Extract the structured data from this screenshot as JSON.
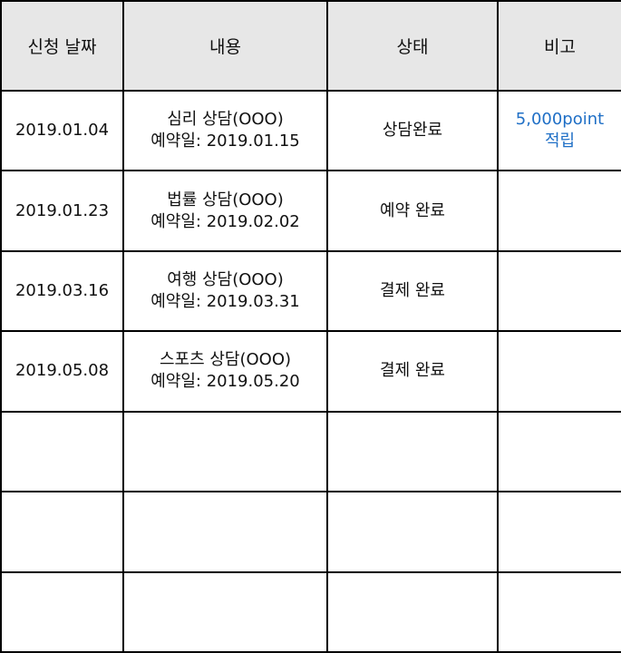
{
  "table": {
    "headers": [
      "신청 날짜",
      "내용",
      "상태",
      "비고"
    ],
    "rows": [
      {
        "date": "2019.01.04",
        "content_title": "심리 상담(OOO)",
        "content_reservation": "예약일: 2019.01.15",
        "status": "상담완료",
        "note_line1": "5,000point",
        "note_line2": "적립"
      },
      {
        "date": "2019.01.23",
        "content_title": "법률 상담(OOO)",
        "content_reservation": "예약일: 2019.02.02",
        "status": "예약 완료",
        "note_line1": "",
        "note_line2": ""
      },
      {
        "date": "2019.03.16",
        "content_title": "여행 상담(OOO)",
        "content_reservation": "예약일: 2019.03.31",
        "status": "결제 완료",
        "note_line1": "",
        "note_line2": ""
      },
      {
        "date": "2019.05.08",
        "content_title": "스포츠 상담(OOO)",
        "content_reservation": "예약일: 2019.05.20",
        "status": "결제 완료",
        "note_line1": "",
        "note_line2": ""
      }
    ]
  },
  "colors": {
    "header_bg": "#e7e7e7",
    "note_accent": "#1f6fc6",
    "border": "#000000"
  }
}
